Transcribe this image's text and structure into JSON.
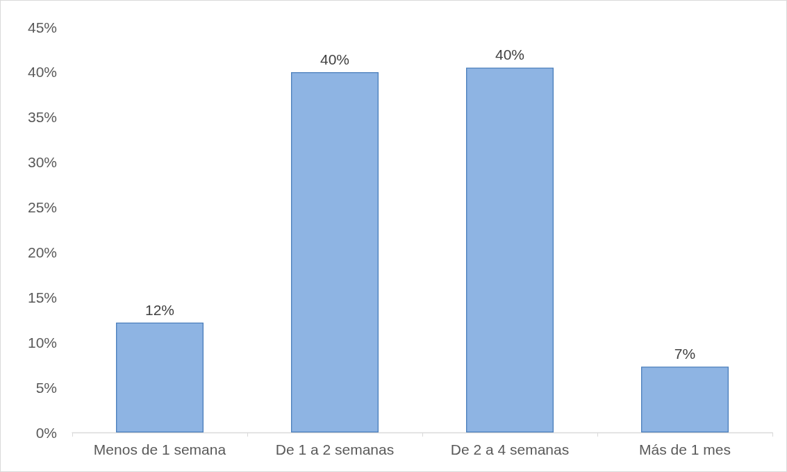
{
  "chart_data": {
    "type": "bar",
    "categories": [
      "Menos de 1 semana",
      "De 1 a 2 semanas",
      "De 2 a 4 semanas",
      "Más de 1 mes"
    ],
    "values": [
      12.2,
      40,
      40.5,
      7.3
    ],
    "value_labels": [
      "12%",
      "40%",
      "40%",
      "7%"
    ],
    "color": "#8eb4e3",
    "ylim": [
      0,
      45
    ],
    "yticks": [
      {
        "value": 0,
        "label": "0%"
      },
      {
        "value": 5,
        "label": "5%"
      },
      {
        "value": 10,
        "label": "10%"
      },
      {
        "value": 15,
        "label": "15%"
      },
      {
        "value": 20,
        "label": "20%"
      },
      {
        "value": 25,
        "label": "25%"
      },
      {
        "value": 30,
        "label": "30%"
      },
      {
        "value": 35,
        "label": "35%"
      },
      {
        "value": 40,
        "label": "40%"
      },
      {
        "value": 45,
        "label": "45%"
      }
    ],
    "grid": false
  }
}
